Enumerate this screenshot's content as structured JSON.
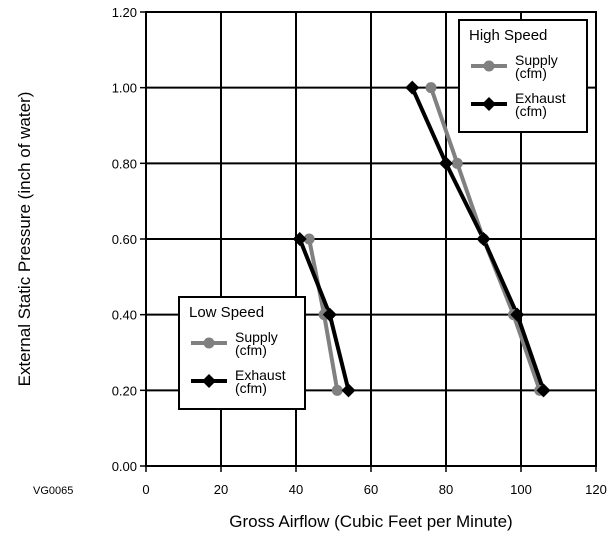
{
  "figure_code": "VG0065",
  "chart_data": {
    "type": "line",
    "xlabel": "Gross Airflow (Cubic Feet per Minute)",
    "ylabel": "External Static Pressure (inch of water)",
    "xlim": [
      0,
      120
    ],
    "ylim": [
      0,
      1.2
    ],
    "x_ticks": [
      "0",
      "20",
      "40",
      "60",
      "80",
      "100",
      "120"
    ],
    "y_ticks": [
      "0.00",
      "0.20",
      "0.40",
      "0.60",
      "0.80",
      "1.00",
      "1.20"
    ],
    "grid": true,
    "groups": [
      {
        "title": "High Speed",
        "legend_position": "top-right",
        "series": [
          {
            "name": "Supply (cfm)",
            "label_lines": [
              "Supply",
              "(cfm)"
            ],
            "color": "#808080",
            "marker": "circle",
            "points": [
              [
                76,
                1.0
              ],
              [
                83,
                0.8
              ],
              [
                90,
                0.6
              ],
              [
                98,
                0.4
              ],
              [
                105,
                0.2
              ]
            ]
          },
          {
            "name": "Exhaust (cfm)",
            "label_lines": [
              "Exhaust",
              "(cfm)"
            ],
            "color": "#000000",
            "marker": "diamond",
            "points": [
              [
                71,
                1.0
              ],
              [
                80,
                0.8
              ],
              [
                90,
                0.6
              ],
              [
                99,
                0.4
              ],
              [
                106,
                0.2
              ]
            ]
          }
        ]
      },
      {
        "title": "Low Speed",
        "legend_position": "bottom-left",
        "series": [
          {
            "name": "Supply (cfm)",
            "label_lines": [
              "Supply",
              "(cfm)"
            ],
            "color": "#808080",
            "marker": "circle",
            "points": [
              [
                43.5,
                0.6
              ],
              [
                47.5,
                0.4
              ],
              [
                51,
                0.2
              ]
            ]
          },
          {
            "name": "Exhaust (cfm)",
            "label_lines": [
              "Exhaust",
              "(cfm)"
            ],
            "color": "#000000",
            "marker": "diamond",
            "points": [
              [
                41,
                0.6
              ],
              [
                49,
                0.4
              ],
              [
                54,
                0.2
              ]
            ]
          }
        ]
      }
    ]
  }
}
